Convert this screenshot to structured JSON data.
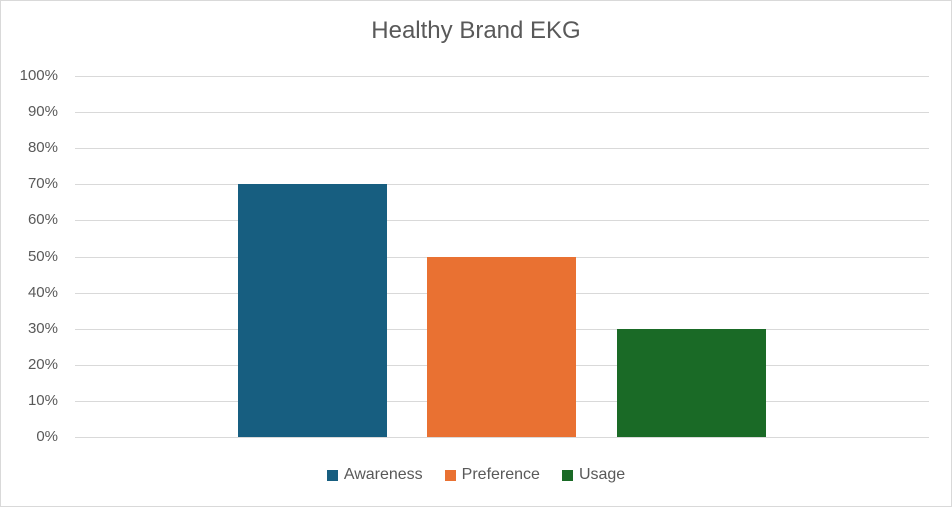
{
  "chart_data": {
    "type": "bar",
    "title": "Healthy Brand EKG",
    "categories": [
      "Awareness",
      "Preference",
      "Usage"
    ],
    "values": [
      70,
      50,
      30
    ],
    "value_format": "percent",
    "colors": [
      "#175E80",
      "#E97132",
      "#1A6A26"
    ],
    "xlabel": "",
    "ylabel": "",
    "ylim": [
      0,
      100
    ],
    "yticks": [
      "0%",
      "10%",
      "20%",
      "30%",
      "40%",
      "50%",
      "60%",
      "70%",
      "80%",
      "90%",
      "100%"
    ],
    "grid": true,
    "legend_position": "bottom",
    "legend": [
      "Awareness",
      "Preference",
      "Usage"
    ]
  }
}
